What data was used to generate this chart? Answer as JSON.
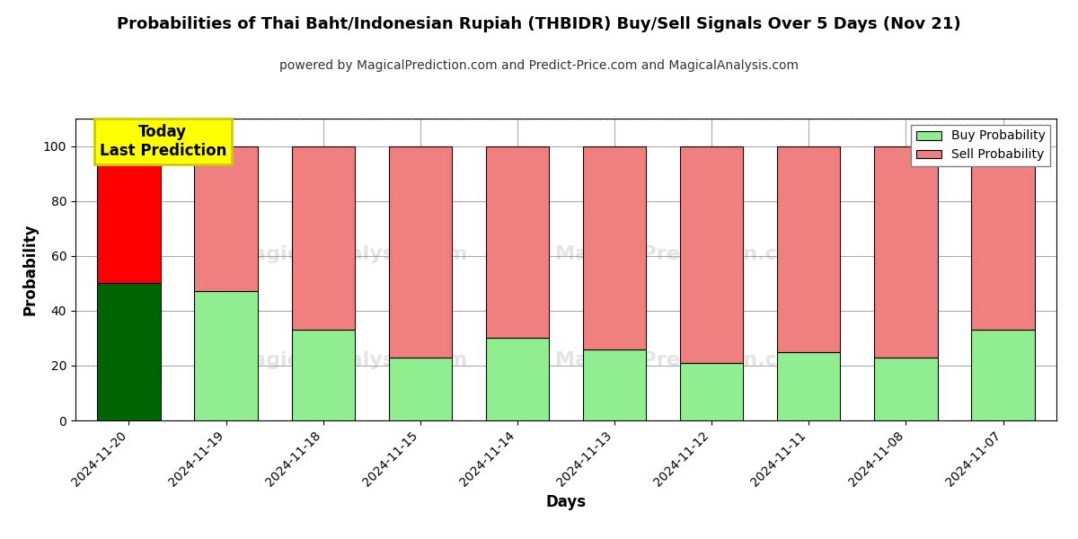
{
  "title": "Probabilities of Thai Baht/Indonesian Rupiah (THBIDR) Buy/Sell Signals Over 5 Days (Nov 21)",
  "subtitle": "powered by MagicalPrediction.com and Predict-Price.com and MagicalAnalysis.com",
  "xlabel": "Days",
  "ylabel": "Probability",
  "categories": [
    "2024-11-20",
    "2024-11-19",
    "2024-11-18",
    "2024-11-15",
    "2024-11-14",
    "2024-11-13",
    "2024-11-12",
    "2024-11-11",
    "2024-11-08",
    "2024-11-07"
  ],
  "buy_values": [
    50,
    47,
    33,
    23,
    30,
    26,
    21,
    25,
    23,
    33
  ],
  "sell_values": [
    50,
    53,
    67,
    77,
    70,
    74,
    79,
    75,
    77,
    67
  ],
  "buy_colors": [
    "#006400",
    "#90EE90",
    "#90EE90",
    "#90EE90",
    "#90EE90",
    "#90EE90",
    "#90EE90",
    "#90EE90",
    "#90EE90",
    "#90EE90"
  ],
  "sell_colors": [
    "#FF0000",
    "#F08080",
    "#F08080",
    "#F08080",
    "#F08080",
    "#F08080",
    "#F08080",
    "#F08080",
    "#F08080",
    "#F08080"
  ],
  "today_label": "Today\nLast Prediction",
  "today_bg": "#FFFF00",
  "today_text_color": "#000000",
  "legend_buy_color": "#90EE90",
  "legend_sell_color": "#F08080",
  "ylim_max": 110,
  "dashed_line_y": 110,
  "yticks": [
    0,
    20,
    40,
    60,
    80,
    100
  ],
  "grid_color": "#AAAAAA",
  "background_color": "#FFFFFF",
  "bar_edge_color": "#000000",
  "bar_linewidth": 0.8,
  "bar_width": 0.65
}
